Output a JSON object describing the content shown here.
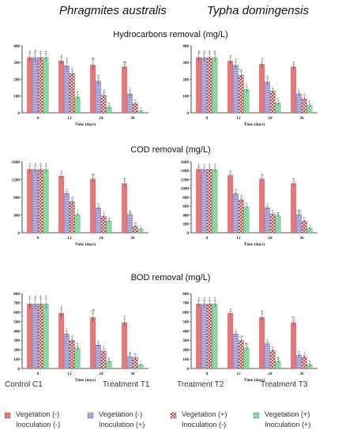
{
  "figure": {
    "column_titles": [
      "Phragmites australis",
      "Typha domingensis"
    ],
    "row_titles": [
      "Hydrocarbons removal (mg/L)",
      "COD removal (mg/L)",
      "BOD removal (mg/L)"
    ]
  },
  "legend": {
    "groups": [
      {
        "header": "Control C1",
        "line1": "Vegetation (-)",
        "line2": "Inoculation (-)",
        "color": "#e8767a",
        "pattern": "solid"
      },
      {
        "header": "Treatment T1",
        "line1": "Vegetation (-)",
        "line2": "Inoculation (+)",
        "color": "#8a8fd0",
        "pattern": "hstripe"
      },
      {
        "header": "Treatment T2",
        "line1": "Vegetation (+)",
        "line2": "Inoculation (-)",
        "color": "#d07a78",
        "pattern": "check"
      },
      {
        "header": "Treatment T3",
        "line1": "Vegetation (+)",
        "line2": "Inoculation (+)",
        "color": "#6fcf8c",
        "pattern": "checkgreen"
      }
    ]
  },
  "chart_data": [
    {
      "type": "bar",
      "id": "hc-phragmites",
      "categories": [
        "0",
        "12",
        "24",
        "36"
      ],
      "xlabel": "Time (days)",
      "yticks": [
        0,
        100,
        200,
        300,
        400
      ],
      "ylim": [
        0,
        400
      ],
      "series": [
        {
          "values": [
            330,
            310,
            285,
            275
          ],
          "errors": [
            25,
            20,
            25,
            15
          ],
          "letters": [
            "a",
            "a",
            "ab",
            "ab"
          ]
        },
        {
          "values": [
            330,
            280,
            190,
            115
          ],
          "errors": [
            30,
            30,
            20,
            20
          ],
          "letters": [
            "a",
            "a",
            "b",
            "c"
          ]
        },
        {
          "values": [
            330,
            235,
            105,
            55
          ],
          "errors": [
            25,
            15,
            15,
            10
          ],
          "letters": [
            "a",
            "b",
            "d",
            "e"
          ]
        },
        {
          "values": [
            330,
            95,
            35,
            10
          ],
          "errors": [
            25,
            15,
            10,
            5
          ],
          "letters": [
            "a",
            "d",
            "e",
            "f"
          ]
        }
      ]
    },
    {
      "type": "bar",
      "id": "hc-typha",
      "categories": [
        "0",
        "12",
        "24",
        "36"
      ],
      "xlabel": "Time (days)",
      "yticks": [
        0,
        100,
        200,
        300,
        400
      ],
      "ylim": [
        0,
        400
      ],
      "series": [
        {
          "values": [
            330,
            310,
            290,
            275
          ],
          "errors": [
            25,
            20,
            20,
            15
          ],
          "letters": [
            "a",
            "a",
            "a",
            "a"
          ]
        },
        {
          "values": [
            330,
            285,
            185,
            115
          ],
          "errors": [
            25,
            20,
            20,
            15
          ],
          "letters": [
            "a",
            "a",
            "b",
            "c"
          ]
        },
        {
          "values": [
            330,
            225,
            130,
            85
          ],
          "errors": [
            25,
            20,
            15,
            10
          ],
          "letters": [
            "a",
            "bc",
            "c",
            "d"
          ]
        },
        {
          "values": [
            330,
            140,
            60,
            45
          ],
          "errors": [
            25,
            20,
            15,
            10
          ],
          "letters": [
            "a",
            "c",
            "e",
            "e"
          ]
        }
      ]
    },
    {
      "type": "bar",
      "id": "cod-phragmites",
      "categories": [
        "0",
        "12",
        "24",
        "36"
      ],
      "xlabel": "Time (days)",
      "yticks": [
        0,
        400,
        800,
        1200,
        1600
      ],
      "ylim": [
        0,
        1600
      ],
      "series": [
        {
          "values": [
            1430,
            1280,
            1210,
            1110
          ],
          "errors": [
            80,
            60,
            50,
            50
          ],
          "letters": [
            "a",
            "a",
            "ab",
            "b"
          ]
        },
        {
          "values": [
            1430,
            890,
            560,
            420
          ],
          "errors": [
            80,
            40,
            30,
            25
          ],
          "letters": [
            "a",
            "c",
            "e",
            "g"
          ]
        },
        {
          "values": [
            1430,
            700,
            370,
            150
          ],
          "errors": [
            80,
            40,
            30,
            20
          ],
          "letters": [
            "a",
            "d",
            "f",
            "h"
          ]
        },
        {
          "values": [
            1430,
            410,
            260,
            80
          ],
          "errors": [
            80,
            30,
            20,
            15
          ],
          "letters": [
            "a",
            "f",
            "g",
            "i"
          ]
        }
      ]
    },
    {
      "type": "bar",
      "id": "cod-typha",
      "categories": [
        "0",
        "12",
        "24",
        "36"
      ],
      "xlabel": "Time (days)",
      "yticks": [
        0,
        200,
        400,
        600,
        800,
        1000,
        1200,
        1400,
        1600
      ],
      "ylim": [
        0,
        1600
      ],
      "series": [
        {
          "values": [
            1430,
            1290,
            1210,
            1110
          ],
          "errors": [
            60,
            40,
            40,
            50
          ],
          "letters": [
            "a",
            "b",
            "b",
            "b"
          ]
        },
        {
          "values": [
            1430,
            880,
            560,
            420
          ],
          "errors": [
            60,
            40,
            40,
            30
          ],
          "letters": [
            "a",
            "d",
            "e",
            "fg"
          ]
        },
        {
          "values": [
            1430,
            740,
            420,
            260
          ],
          "errors": [
            60,
            40,
            30,
            20
          ],
          "letters": [
            "a",
            "d",
            "e",
            "h"
          ]
        },
        {
          "values": [
            1430,
            580,
            380,
            100
          ],
          "errors": [
            60,
            30,
            20,
            15
          ],
          "letters": [
            "a",
            "e",
            "g",
            "i"
          ]
        }
      ]
    },
    {
      "type": "bar",
      "id": "bod-phragmites",
      "categories": [
        "0",
        "12",
        "24",
        "36"
      ],
      "xlabel": "Time (days)",
      "yticks": [
        0,
        100,
        200,
        300,
        400,
        500,
        600,
        700,
        800
      ],
      "ylim": [
        0,
        800
      ],
      "series": [
        {
          "values": [
            690,
            590,
            545,
            490
          ],
          "errors": [
            60,
            50,
            50,
            40
          ],
          "letters": [
            "a",
            "a",
            "ab",
            "b"
          ]
        },
        {
          "values": [
            690,
            370,
            250,
            130
          ],
          "errors": [
            60,
            30,
            20,
            15
          ],
          "letters": [
            "a",
            "c",
            "e",
            "g"
          ]
        },
        {
          "values": [
            690,
            300,
            185,
            115
          ],
          "errors": [
            60,
            20,
            20,
            15
          ],
          "letters": [
            "a",
            "d",
            "f",
            "h"
          ]
        },
        {
          "values": [
            690,
            220,
            75,
            40
          ],
          "errors": [
            60,
            20,
            10,
            10
          ],
          "letters": [
            "a",
            "e",
            "h",
            "i"
          ]
        }
      ]
    },
    {
      "type": "bar",
      "id": "bod-typha",
      "categories": [
        "0",
        "12",
        "24",
        "36"
      ],
      "xlabel": "Time (days)",
      "yticks": [
        0,
        100,
        200,
        300,
        400,
        500,
        600,
        700,
        800
      ],
      "ylim": [
        0,
        800
      ],
      "series": [
        {
          "values": [
            690,
            590,
            545,
            490
          ],
          "errors": [
            40,
            20,
            40,
            30
          ],
          "letters": [
            "a",
            "a",
            "b",
            "bc"
          ]
        },
        {
          "values": [
            690,
            370,
            265,
            140
          ],
          "errors": [
            40,
            25,
            15,
            15
          ],
          "letters": [
            "a",
            "c",
            "e",
            "e"
          ]
        },
        {
          "values": [
            690,
            300,
            190,
            125
          ],
          "errors": [
            40,
            20,
            15,
            15
          ],
          "letters": [
            "a",
            "cd",
            "e",
            "f"
          ]
        },
        {
          "values": [
            690,
            220,
            80,
            40
          ],
          "errors": [
            40,
            20,
            15,
            10
          ],
          "letters": [
            "a",
            "de",
            "g",
            "h"
          ]
        }
      ]
    }
  ]
}
